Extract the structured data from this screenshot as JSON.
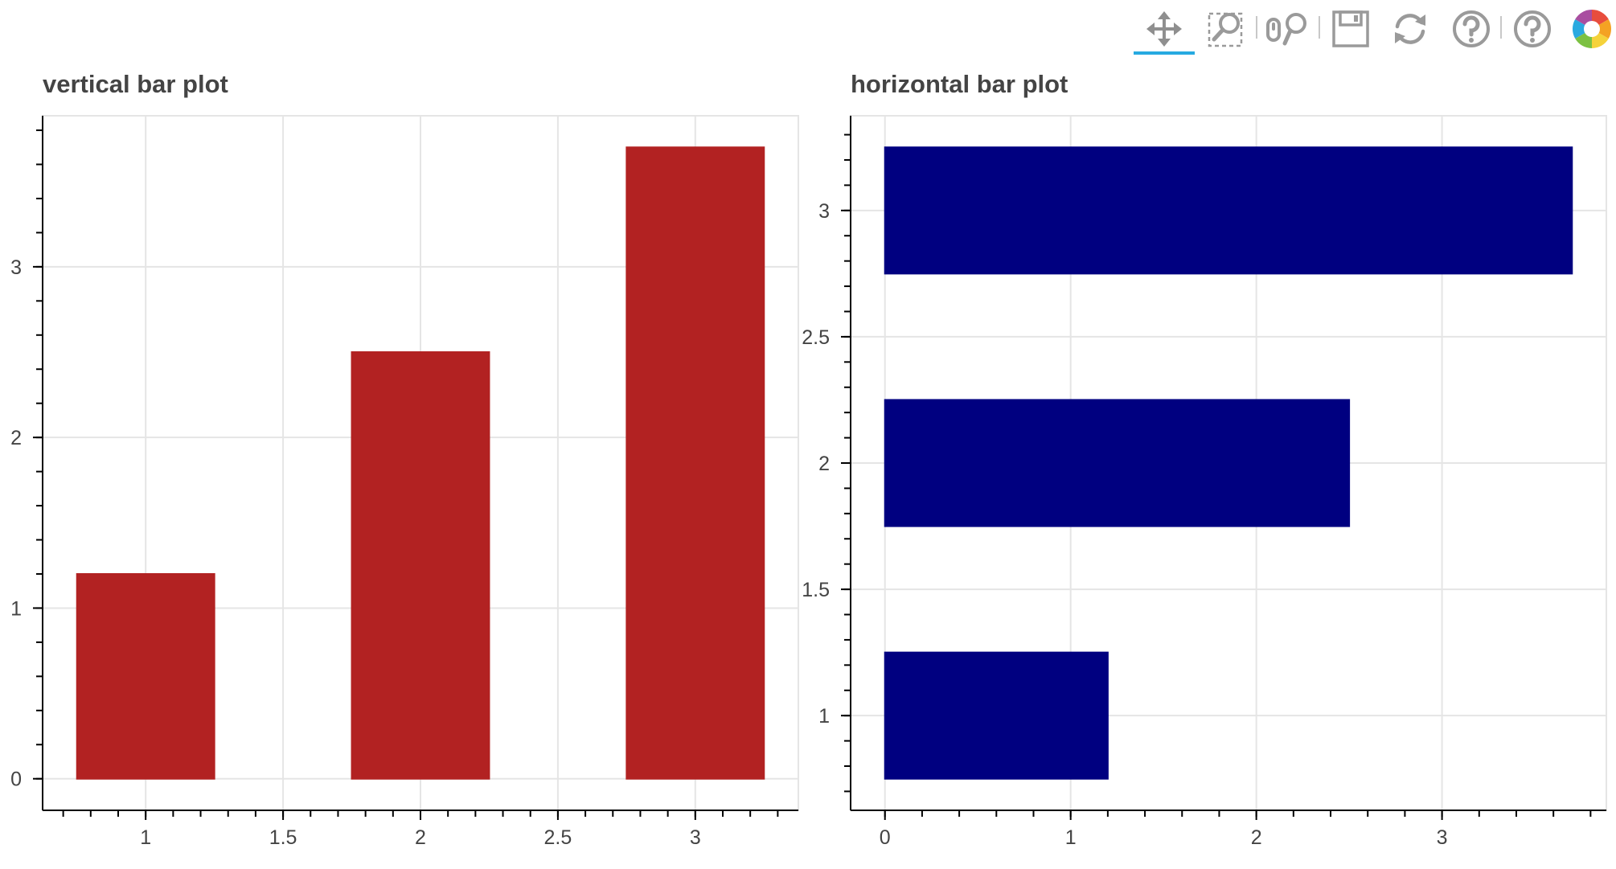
{
  "toolbar": {
    "tools": [
      {
        "name": "pan-tool",
        "icon": "pan-icon",
        "active": true
      },
      {
        "name": "box-zoom-tool",
        "icon": "box-zoom-icon",
        "active": false
      },
      {
        "name": "wheel-zoom-tool",
        "icon": "wheel-zoom-icon",
        "active": false
      },
      {
        "name": "save-tool",
        "icon": "save-icon",
        "active": false
      },
      {
        "name": "reset-tool",
        "icon": "reset-icon",
        "active": false
      },
      {
        "name": "help-tool",
        "icon": "help-icon",
        "active": false
      },
      {
        "name": "help-tool-2",
        "icon": "help-icon",
        "active": false
      },
      {
        "name": "bokeh-logo",
        "icon": "bokeh-logo-icon",
        "active": false
      }
    ],
    "active_color": "#26aae1",
    "icon_color": "#9a9a9a"
  },
  "chart_data": [
    {
      "type": "bar",
      "orientation": "vertical",
      "title": "vertical bar plot",
      "x": [
        1,
        2,
        3
      ],
      "values": [
        1.2,
        2.5,
        3.7
      ],
      "bar_width": 0.5,
      "color": "#b22222",
      "xlim": [
        0.625,
        3.375
      ],
      "ylim": [
        -0.185,
        3.885
      ],
      "x_ticks": [
        1,
        1.5,
        2,
        2.5,
        3
      ],
      "x_tick_labels": [
        "1",
        "1.5",
        "2",
        "2.5",
        "3"
      ],
      "y_ticks": [
        0,
        1,
        2,
        3
      ],
      "y_tick_labels": [
        "0",
        "1",
        "2",
        "3"
      ],
      "grid": true
    },
    {
      "type": "bar",
      "orientation": "horizontal",
      "title": "horizontal bar plot",
      "y": [
        1,
        2,
        3
      ],
      "values": [
        1.2,
        2.5,
        3.7
      ],
      "bar_height": 0.5,
      "color": "#000080",
      "xlim": [
        -0.185,
        3.885
      ],
      "ylim": [
        0.625,
        3.375
      ],
      "x_ticks": [
        0,
        1,
        2,
        3
      ],
      "x_tick_labels": [
        "0",
        "1",
        "2",
        "3"
      ],
      "y_ticks": [
        1,
        1.5,
        2,
        2.5,
        3
      ],
      "y_tick_labels": [
        "1",
        "1.5",
        "2",
        "2.5",
        "3"
      ],
      "grid": true
    }
  ]
}
